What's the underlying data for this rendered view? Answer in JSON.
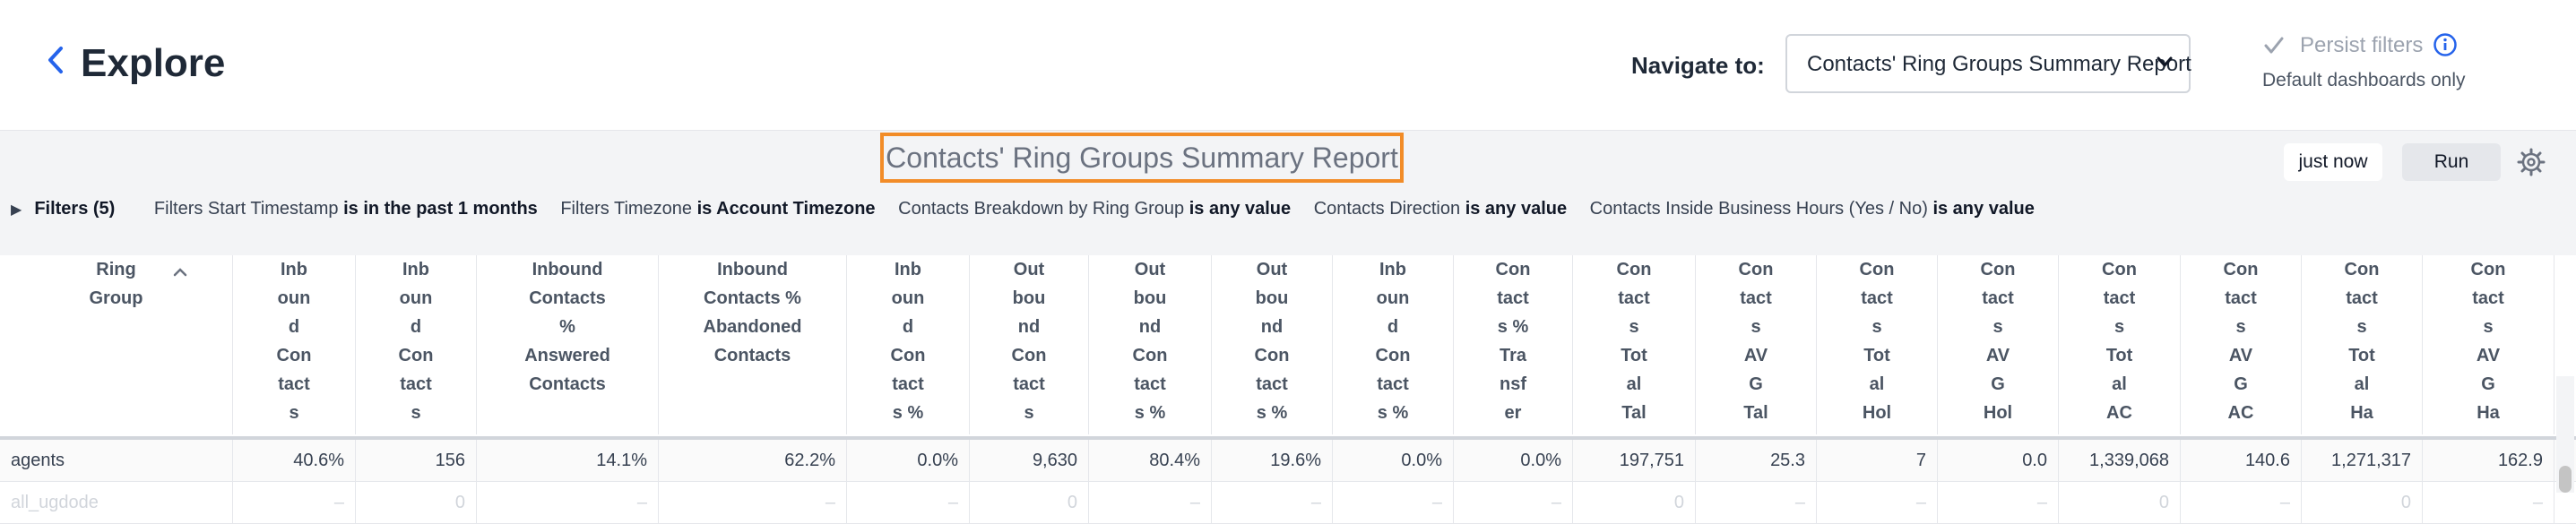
{
  "header": {
    "back_icon": "chevron-left-icon",
    "title": "Explore",
    "navigate_label": "Navigate to:",
    "navigate_value": "Contacts' Ring Groups Summary Report",
    "persist_label": "Persist filters",
    "persist_sub": "Default dashboards only"
  },
  "report": {
    "title": "Contacts' Ring Groups Summary Report",
    "updated": "just now",
    "run_label": "Run"
  },
  "filters": {
    "toggle": "Filters (5)",
    "items": [
      {
        "name": "Filters Start Timestamp",
        "cond": "is in the past 1 months"
      },
      {
        "name": "Filters Timezone",
        "cond": "is Account Timezone"
      },
      {
        "name": "Contacts Breakdown by Ring Group",
        "cond": "is any value"
      },
      {
        "name": "Contacts Direction",
        "cond": "is any value"
      },
      {
        "name": "Contacts Inside Business Hours (Yes / No)",
        "cond": "is any value"
      }
    ]
  },
  "table": {
    "columns": [
      [
        "Ring",
        "Group"
      ],
      [
        "Inb",
        "oun",
        "d",
        "Con",
        "tact",
        "s"
      ],
      [
        "Inb",
        "oun",
        "d",
        "Con",
        "tact",
        "s"
      ],
      [
        "Inbound",
        "Contacts",
        "%",
        "Answered",
        "Contacts"
      ],
      [
        "Inbound",
        "Contacts %",
        "Abandoned",
        "Contacts"
      ],
      [
        "Inb",
        "oun",
        "d",
        "Con",
        "tact",
        "s %"
      ],
      [
        "Out",
        "bou",
        "nd",
        "Con",
        "tact",
        "s"
      ],
      [
        "Out",
        "bou",
        "nd",
        "Con",
        "tact",
        "s %"
      ],
      [
        "Out",
        "bou",
        "nd",
        "Con",
        "tact",
        "s %"
      ],
      [
        "Inb",
        "oun",
        "d",
        "Con",
        "tact",
        "s %"
      ],
      [
        "Con",
        "tact",
        "s %",
        "Tra",
        "nsf",
        "er"
      ],
      [
        "Con",
        "tact",
        "s",
        "Tot",
        "al",
        "Tal"
      ],
      [
        "Con",
        "tact",
        "s",
        "AV",
        "G",
        "Tal"
      ],
      [
        "Con",
        "tact",
        "s",
        "Tot",
        "al",
        "Hol"
      ],
      [
        "Con",
        "tact",
        "s",
        "AV",
        "G",
        "Hol"
      ],
      [
        "Con",
        "tact",
        "s",
        "Tot",
        "al",
        "AC"
      ],
      [
        "Con",
        "tact",
        "s",
        "AV",
        "G",
        "AC"
      ],
      [
        "Con",
        "tact",
        "s",
        "Tot",
        "al",
        "Ha"
      ],
      [
        "Con",
        "tact",
        "s",
        "AV",
        "G",
        "Ha"
      ]
    ],
    "rows": [
      [
        "agents",
        "40.6%",
        "156",
        "14.1%",
        "62.2%",
        "0.0%",
        "9,630",
        "80.4%",
        "19.6%",
        "0.0%",
        "0.0%",
        "197,751",
        "25.3",
        "7",
        "0.0",
        "1,339,068",
        "140.6",
        "1,271,317",
        "162.9"
      ],
      [
        "all_ugdode",
        "–",
        "0",
        "–",
        "–",
        "–",
        "0",
        "–",
        "–",
        "–",
        "–",
        "0",
        "–",
        "–",
        "–",
        "0",
        "–",
        "0",
        "–"
      ]
    ]
  }
}
